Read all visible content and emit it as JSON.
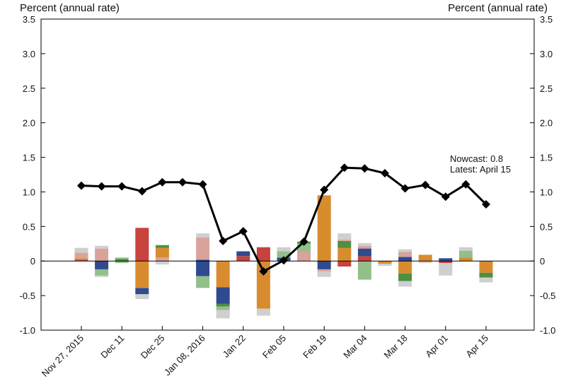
{
  "chart_data": {
    "type": "bar+line",
    "ylabel_left": "Percent (annual rate)",
    "ylabel_right": "Percent (annual rate)",
    "ylim": [
      -1.0,
      3.5
    ],
    "yticks": [
      "3.5",
      "3.0",
      "2.5",
      "2.0",
      "1.5",
      "1.0",
      "0.5",
      "0",
      "-0.5",
      "-1.0"
    ],
    "ytick_values": [
      3.5,
      3.0,
      2.5,
      2.0,
      1.5,
      1.0,
      0.5,
      0,
      -0.5,
      -1.0
    ],
    "x_tick_labels": [
      "Nov 27, 2015",
      "Dec 11",
      "Dec 25",
      "Jan 08, 2016",
      "Jan 22",
      "Feb 05",
      "Feb 19",
      "Mar 04",
      "Mar 18",
      "Apr 01",
      "Apr 15"
    ],
    "x_tick_index": [
      0,
      2,
      4,
      6,
      8,
      10,
      12,
      14,
      16,
      18,
      20
    ],
    "n_periods": 21,
    "colors": [
      "#d98c2e",
      "#c8423e",
      "#2f4a8f",
      "#4e8f42",
      "#93bf8a",
      "#d9a39c",
      "#cfcfcf"
    ],
    "line": {
      "name": "Nowcast",
      "values": [
        1.09,
        1.08,
        1.08,
        1.01,
        1.14,
        1.14,
        1.11,
        0.29,
        0.43,
        -0.15,
        0.01,
        0.28,
        1.03,
        1.35,
        1.34,
        1.27,
        1.05,
        1.1,
        0.93,
        1.11,
        0.82
      ],
      "color": "#000000"
    },
    "bars": [
      [
        [
          0.0,
          0.02,
          1
        ],
        [
          0.02,
          0.04,
          0
        ],
        [
          0.04,
          0.12,
          5
        ],
        [
          0.12,
          0.19,
          6
        ]
      ],
      [
        [
          0.0,
          0.18,
          5
        ],
        [
          0.18,
          0.22,
          6
        ],
        [
          0.0,
          -0.12,
          2
        ],
        [
          -0.12,
          -0.21,
          4
        ],
        [
          -0.21,
          -0.23,
          6
        ]
      ],
      [
        [
          0.0,
          0.03,
          3
        ],
        [
          0.03,
          0.05,
          4
        ],
        [
          0.0,
          -0.03,
          4
        ]
      ],
      [
        [
          0.0,
          0.48,
          1
        ],
        [
          0.0,
          -0.39,
          0
        ],
        [
          -0.39,
          -0.48,
          2
        ],
        [
          -0.48,
          -0.55,
          6
        ]
      ],
      [
        [
          0.0,
          0.05,
          5
        ],
        [
          0.05,
          0.19,
          0
        ],
        [
          0.19,
          0.23,
          3
        ],
        [
          0.0,
          -0.05,
          6
        ]
      ],
      [],
      [
        [
          0.0,
          0.02,
          2
        ],
        [
          0.02,
          0.34,
          5
        ],
        [
          0.34,
          0.4,
          6
        ],
        [
          0.0,
          -0.22,
          2
        ],
        [
          -0.22,
          -0.39,
          4
        ]
      ],
      [
        [
          0.0,
          -0.38,
          0
        ],
        [
          -0.38,
          -0.62,
          2
        ],
        [
          -0.62,
          -0.66,
          3
        ],
        [
          -0.66,
          -0.71,
          4
        ],
        [
          -0.71,
          -0.83,
          6
        ]
      ],
      [
        [
          0.0,
          0.07,
          1
        ],
        [
          0.07,
          0.14,
          2
        ]
      ],
      [
        [
          0.0,
          0.2,
          1
        ],
        [
          0.0,
          -0.69,
          0
        ],
        [
          -0.69,
          -0.79,
          6
        ]
      ],
      [
        [
          0.0,
          0.05,
          2
        ],
        [
          0.05,
          0.14,
          4
        ],
        [
          0.14,
          0.2,
          6
        ]
      ],
      [
        [
          0.0,
          0.14,
          5
        ],
        [
          0.14,
          0.25,
          4
        ],
        [
          0.25,
          0.28,
          3
        ]
      ],
      [
        [
          0.0,
          0.95,
          0
        ],
        [
          0.0,
          -0.12,
          2
        ],
        [
          -0.12,
          -0.15,
          5
        ],
        [
          -0.15,
          -0.23,
          6
        ]
      ],
      [
        [
          0.0,
          0.19,
          0
        ],
        [
          0.19,
          0.29,
          3
        ],
        [
          0.29,
          0.31,
          5
        ],
        [
          0.31,
          0.4,
          6
        ],
        [
          0.0,
          -0.08,
          1
        ]
      ],
      [
        [
          0.0,
          0.07,
          1
        ],
        [
          0.07,
          0.18,
          2
        ],
        [
          0.18,
          0.22,
          5
        ],
        [
          0.22,
          0.26,
          6
        ],
        [
          0.0,
          -0.27,
          4
        ]
      ],
      [
        [
          0.0,
          -0.04,
          0
        ],
        [
          -0.04,
          -0.07,
          6
        ]
      ],
      [
        [
          0.0,
          0.06,
          2
        ],
        [
          0.06,
          0.13,
          5
        ],
        [
          0.13,
          0.17,
          6
        ],
        [
          0.0,
          -0.18,
          0
        ],
        [
          -0.18,
          -0.29,
          3
        ],
        [
          -0.29,
          -0.37,
          6
        ]
      ],
      [
        [
          0.0,
          0.09,
          0
        ],
        [
          0.0,
          -0.03,
          6
        ]
      ],
      [
        [
          0.0,
          0.04,
          2
        ],
        [
          0.0,
          -0.03,
          1
        ],
        [
          -0.03,
          -0.21,
          6
        ]
      ],
      [
        [
          0.0,
          0.05,
          0
        ],
        [
          0.05,
          0.15,
          4
        ],
        [
          0.15,
          0.2,
          6
        ]
      ],
      [
        [
          0.0,
          -0.17,
          0
        ],
        [
          -0.17,
          -0.24,
          3
        ],
        [
          -0.24,
          -0.31,
          6
        ]
      ]
    ]
  },
  "annotation": {
    "line1": "Nowcast:  0.8",
    "line2": "Latest: April 15"
  }
}
